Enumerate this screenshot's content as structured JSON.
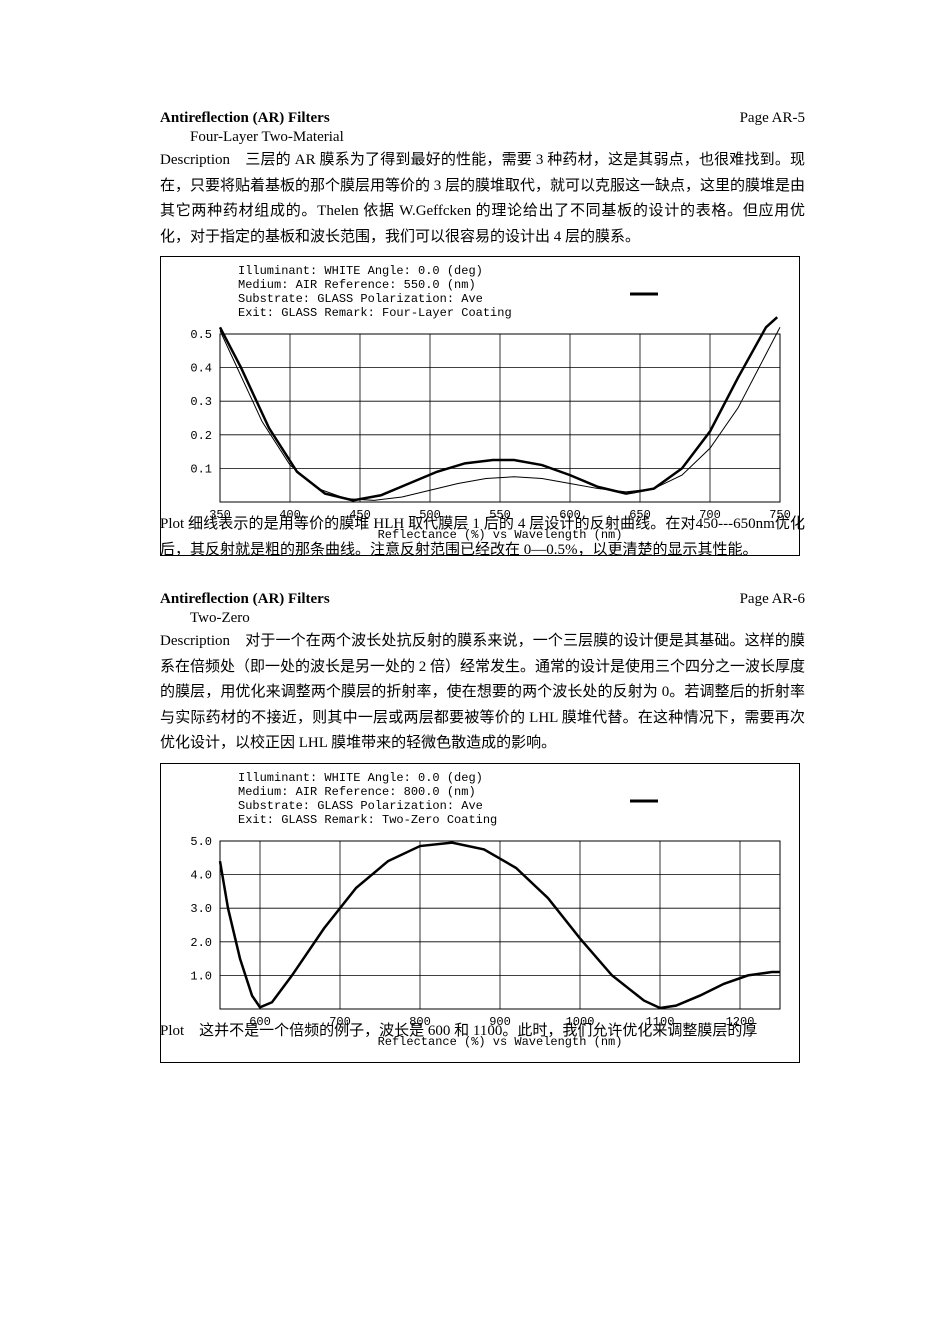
{
  "section1": {
    "title": "Antireflection (AR) Filters",
    "page": "Page AR-5",
    "subtitle": "Four-Layer Two-Material",
    "description": "Description　三层的 AR 膜系为了得到最好的性能，需要 3 种药材，这是其弱点，也很难找到。现在，只要将贴着基板的那个膜层用等价的 3 层的膜堆取代，就可以克服这一缺点，这里的膜堆是由其它两种药材组成的。Thelen 依据 W.Geffcken 的理论给出了不同基板的设计的表格。但应用优化，对于指定的基板和波长范围，我们可以很容易的设计出 4 层的膜系。",
    "plot_caption": "Plot 细线表示的是用等价的膜堆 HLH 取代膜层 1 后的 4 层设计的反射曲线。在对450---650nm优化后，其反射就是粗的那条曲线。注意反射范围已经改在 0—0.5%，以更清楚的显示其性能。",
    "chart": {
      "type": "line",
      "legend": {
        "illuminant": "WHITE",
        "medium": "AIR",
        "substrate": "GLASS",
        "exit": "GLASS",
        "angle": "0.0 (deg)",
        "reference": "550.0 (nm)",
        "polarization": "Ave",
        "remark": "Four-Layer Coating"
      },
      "xlabel": "Wavelength (nm)",
      "ylabel": "Reflectance (%)",
      "vs_text": "Reflectance (%)   vs   Wavelength (nm)",
      "xlim": [
        350,
        750
      ],
      "ylim": [
        0,
        0.5
      ],
      "xticks": [
        350,
        400,
        450,
        500,
        550,
        600,
        650,
        700,
        750
      ],
      "yticks": [
        0.1,
        0.2,
        0.3,
        0.4,
        0.5
      ],
      "line_color": "#000000",
      "grid_color": "#000000",
      "background_color": "#ffffff",
      "series_thin": [
        [
          350,
          0.51
        ],
        [
          360,
          0.42
        ],
        [
          380,
          0.24
        ],
        [
          400,
          0.11
        ],
        [
          420,
          0.04
        ],
        [
          440,
          0.01
        ],
        [
          460,
          0.005
        ],
        [
          480,
          0.015
        ],
        [
          500,
          0.035
        ],
        [
          520,
          0.055
        ],
        [
          540,
          0.07
        ],
        [
          560,
          0.075
        ],
        [
          580,
          0.07
        ],
        [
          600,
          0.055
        ],
        [
          620,
          0.04
        ],
        [
          640,
          0.03
        ],
        [
          660,
          0.04
        ],
        [
          680,
          0.08
        ],
        [
          700,
          0.16
        ],
        [
          720,
          0.28
        ],
        [
          740,
          0.44
        ],
        [
          750,
          0.52
        ]
      ],
      "series_thick": [
        [
          350,
          0.52
        ],
        [
          365,
          0.4
        ],
        [
          385,
          0.22
        ],
        [
          405,
          0.09
        ],
        [
          425,
          0.025
        ],
        [
          445,
          0.005
        ],
        [
          465,
          0.02
        ],
        [
          485,
          0.055
        ],
        [
          505,
          0.09
        ],
        [
          525,
          0.115
        ],
        [
          545,
          0.125
        ],
        [
          560,
          0.125
        ],
        [
          580,
          0.11
        ],
        [
          600,
          0.08
        ],
        [
          620,
          0.045
        ],
        [
          640,
          0.025
        ],
        [
          660,
          0.04
        ],
        [
          680,
          0.1
        ],
        [
          700,
          0.21
        ],
        [
          720,
          0.37
        ],
        [
          740,
          0.52
        ],
        [
          748,
          0.55
        ]
      ]
    }
  },
  "section2": {
    "title": "Antireflection (AR) Filters",
    "page": "Page AR-6",
    "subtitle": "Two-Zero",
    "description": "Description　对于一个在两个波长处抗反射的膜系来说，一个三层膜的设计便是其基础。这样的膜系在倍频处（即一处的波长是另一处的 2 倍）经常发生。通常的设计是使用三个四分之一波长厚度的膜层，用优化来调整两个膜层的折射率，使在想要的两个波长处的反射为 0。若调整后的折射率与实际药材的不接近，则其中一层或两层都要被等价的 LHL 膜堆代替。在这种情况下，需要再次优化设计，以校正因 LHL 膜堆带来的轻微色散造成的影响。",
    "plot_caption": "Plot　这并不是一个倍频的例子，波长是 600 和 1100。此时，我们允许优化来调整膜层的厚",
    "chart": {
      "type": "line",
      "legend": {
        "illuminant": "WHITE",
        "medium": "AIR",
        "substrate": "GLASS",
        "exit": "GLASS",
        "angle": "0.0 (deg)",
        "reference": "800.0 (nm)",
        "polarization": "Ave",
        "remark": "Two-Zero Coating"
      },
      "xlabel": "Wavelength (nm)",
      "ylabel": "Reflectance (%)",
      "vs_text": "Reflectance (%)   vs   Wavelength (nm)",
      "xlim": [
        550,
        1250
      ],
      "ylim": [
        0,
        5.0
      ],
      "xticks": [
        600,
        700,
        800,
        900,
        1000,
        1100,
        1200
      ],
      "yticks": [
        1.0,
        2.0,
        3.0,
        4.0,
        5.0
      ],
      "line_color": "#000000",
      "grid_color": "#000000",
      "background_color": "#ffffff",
      "series_thick": [
        [
          550,
          4.4
        ],
        [
          560,
          3.0
        ],
        [
          575,
          1.5
        ],
        [
          590,
          0.4
        ],
        [
          600,
          0.05
        ],
        [
          615,
          0.2
        ],
        [
          640,
          1.0
        ],
        [
          680,
          2.4
        ],
        [
          720,
          3.6
        ],
        [
          760,
          4.4
        ],
        [
          800,
          4.85
        ],
        [
          840,
          4.95
        ],
        [
          880,
          4.75
        ],
        [
          920,
          4.2
        ],
        [
          960,
          3.3
        ],
        [
          1000,
          2.1
        ],
        [
          1040,
          1.0
        ],
        [
          1080,
          0.25
        ],
        [
          1100,
          0.03
        ],
        [
          1120,
          0.1
        ],
        [
          1150,
          0.4
        ],
        [
          1180,
          0.75
        ],
        [
          1210,
          1.0
        ],
        [
          1240,
          1.1
        ],
        [
          1250,
          1.1
        ]
      ]
    }
  }
}
